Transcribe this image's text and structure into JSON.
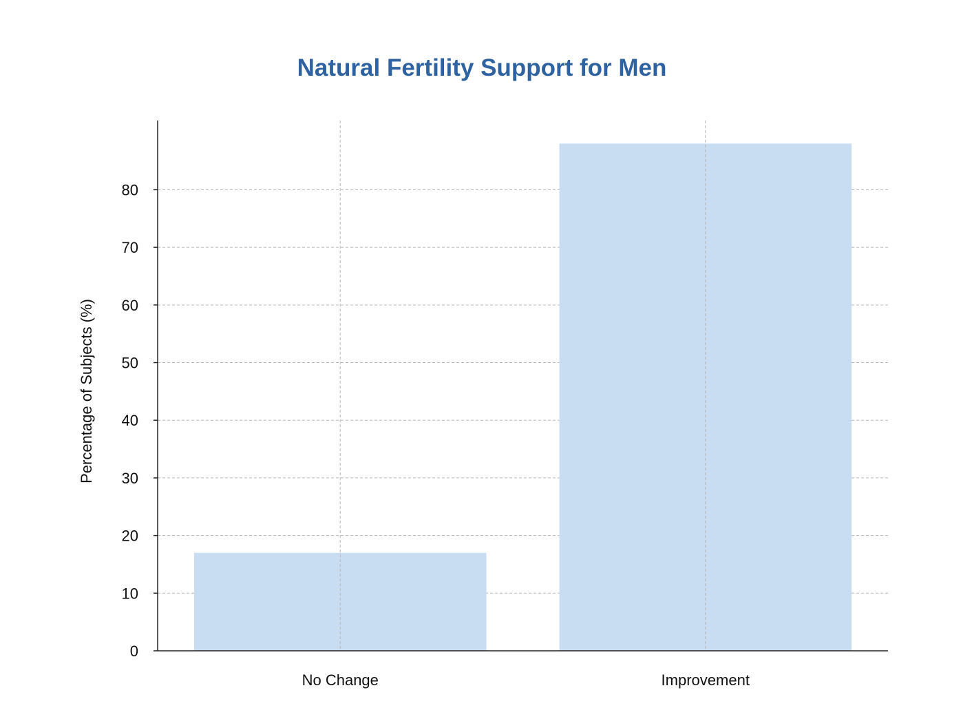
{
  "colors": {
    "title": "#2e62a0",
    "bar": "#c8dcf2",
    "grid": "#b8b8b8",
    "axis": "#222222"
  },
  "chart_data": {
    "type": "bar",
    "title": "Natural Fertility Support for Men",
    "xlabel": "",
    "ylabel": "Percentage of Subjects (%)",
    "categories": [
      "No Change",
      "Improvement"
    ],
    "values": [
      17,
      88
    ],
    "ylim": [
      0,
      92
    ],
    "yticks": [
      0,
      10,
      20,
      30,
      40,
      50,
      60,
      70,
      80
    ],
    "grid": true,
    "legend": "none"
  }
}
